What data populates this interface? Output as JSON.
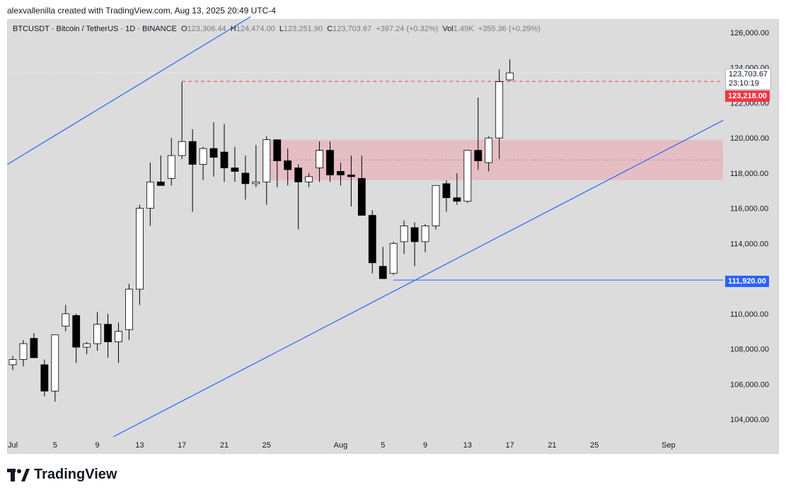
{
  "header": {
    "credit": "alexvallenilla created with TradingView.com, Aug 13, 2025 20:49 UTC-4"
  },
  "legend": {
    "symbol": "BTCUSDT · Bitcoin / TetherUS · 1D · BINANCE",
    "o_label": "O",
    "o": "123,306.44",
    "h_label": "H",
    "h": "124,474.00",
    "l_label": "L",
    "l": "123,251.90",
    "c_label": "C",
    "c": "123,703.67",
    "change": "+397.24 (+0.32%)",
    "vol_label": "Vol",
    "vol": "1.49K",
    "vol_change": "+355.36 (+0.29%)"
  },
  "price_tags": {
    "last": "123,703.67",
    "countdown": "23:10:19",
    "red_level": "123,218.00",
    "blue_level": "111,920.00"
  },
  "brand": {
    "name": "TradingView",
    "logo_icon": "tradingview-logo-icon"
  },
  "colors": {
    "up": "#ffffff",
    "down": "#000000",
    "zone": "#e8b4bc",
    "red": "#f23645",
    "blue": "#2962ff"
  },
  "chart_data": {
    "type": "candlestick",
    "title": "",
    "y_axis": {
      "ticks": [
        104000,
        106000,
        108000,
        110000,
        112000,
        114000,
        116000,
        118000,
        120000,
        122000,
        124000,
        126000
      ],
      "tick_labels": [
        "104,000.00",
        "106,000.00",
        "108,000.00",
        "110,000.00",
        "",
        "114,000.00",
        "116,000.00",
        "118,000.00",
        "120,000.00",
        "122,000.00",
        "124,000.00",
        "126,000.00"
      ],
      "range": [
        102800,
        126900
      ]
    },
    "x_axis": {
      "labels": [
        "Jul",
        "5",
        "9",
        "13",
        "17",
        "21",
        "25",
        "Aug",
        "5",
        "9",
        "13",
        "17",
        "21",
        "25",
        "Sep"
      ],
      "label_days": [
        0,
        4,
        8,
        12,
        16,
        20,
        24,
        31,
        35,
        39,
        43,
        47,
        51,
        55,
        62
      ]
    },
    "candles": [
      {
        "date": "2025-06-30",
        "o": 107100,
        "h": 107600,
        "l": 106800,
        "c": 107400
      },
      {
        "date": "2025-07-01",
        "o": 107400,
        "h": 108500,
        "l": 107000,
        "c": 108300
      },
      {
        "date": "2025-07-02",
        "o": 108600,
        "h": 108900,
        "l": 107500,
        "c": 107500
      },
      {
        "date": "2025-07-03",
        "o": 107100,
        "h": 107400,
        "l": 105300,
        "c": 105600
      },
      {
        "date": "2025-07-04",
        "o": 105600,
        "h": 108800,
        "l": 105000,
        "c": 108800
      },
      {
        "date": "2025-07-05",
        "o": 109300,
        "h": 110500,
        "l": 109000,
        "c": 110000
      },
      {
        "date": "2025-07-06",
        "o": 109900,
        "h": 110000,
        "l": 107200,
        "c": 108100
      },
      {
        "date": "2025-07-07",
        "o": 108100,
        "h": 108400,
        "l": 107700,
        "c": 108300
      },
      {
        "date": "2025-07-08",
        "o": 108300,
        "h": 110100,
        "l": 107900,
        "c": 109400
      },
      {
        "date": "2025-07-09",
        "o": 109400,
        "h": 110000,
        "l": 107500,
        "c": 108400
      },
      {
        "date": "2025-07-10",
        "o": 108400,
        "h": 109500,
        "l": 107200,
        "c": 109000
      },
      {
        "date": "2025-07-11",
        "o": 109100,
        "h": 111700,
        "l": 108500,
        "c": 111400
      },
      {
        "date": "2025-07-12",
        "o": 111400,
        "h": 116200,
        "l": 110500,
        "c": 116000
      },
      {
        "date": "2025-07-13",
        "o": 116000,
        "h": 118600,
        "l": 115000,
        "c": 117500
      },
      {
        "date": "2025-07-14",
        "o": 117500,
        "h": 119000,
        "l": 117300,
        "c": 117300
      },
      {
        "date": "2025-07-15",
        "o": 117700,
        "h": 120000,
        "l": 117300,
        "c": 119000
      },
      {
        "date": "2025-07-16",
        "o": 119000,
        "h": 123200,
        "l": 118800,
        "c": 119800
      },
      {
        "date": "2025-07-17",
        "o": 119800,
        "h": 120500,
        "l": 115800,
        "c": 118500
      },
      {
        "date": "2025-07-18",
        "o": 118500,
        "h": 119500,
        "l": 117600,
        "c": 119400
      },
      {
        "date": "2025-07-19",
        "o": 119400,
        "h": 120900,
        "l": 117800,
        "c": 118900
      },
      {
        "date": "2025-07-20",
        "o": 119200,
        "h": 120800,
        "l": 117500,
        "c": 118300
      },
      {
        "date": "2025-07-21",
        "o": 118300,
        "h": 119500,
        "l": 117500,
        "c": 118100
      },
      {
        "date": "2025-07-22",
        "o": 118000,
        "h": 119000,
        "l": 116500,
        "c": 117400
      },
      {
        "date": "2025-07-23",
        "o": 117400,
        "h": 119600,
        "l": 117200,
        "c": 117500
      },
      {
        "date": "2025-07-24",
        "o": 117500,
        "h": 120100,
        "l": 116200,
        "c": 119900
      },
      {
        "date": "2025-07-25",
        "o": 119900,
        "h": 119900,
        "l": 117200,
        "c": 118700
      },
      {
        "date": "2025-07-26",
        "o": 118700,
        "h": 119400,
        "l": 117300,
        "c": 118200
      },
      {
        "date": "2025-07-27",
        "o": 118300,
        "h": 118500,
        "l": 114800,
        "c": 117500
      },
      {
        "date": "2025-07-28",
        "o": 117500,
        "h": 118000,
        "l": 117200,
        "c": 117800
      },
      {
        "date": "2025-07-29",
        "o": 118300,
        "h": 119800,
        "l": 117500,
        "c": 119300
      },
      {
        "date": "2025-07-30",
        "o": 119300,
        "h": 119800,
        "l": 117500,
        "c": 117900
      },
      {
        "date": "2025-07-31",
        "o": 118100,
        "h": 118600,
        "l": 117300,
        "c": 117900
      },
      {
        "date": "2025-08-01",
        "o": 117900,
        "h": 119000,
        "l": 116100,
        "c": 117800
      },
      {
        "date": "2025-08-02",
        "o": 117700,
        "h": 119000,
        "l": 115600,
        "c": 115600
      },
      {
        "date": "2025-08-03",
        "o": 115600,
        "h": 115900,
        "l": 112300,
        "c": 112900
      },
      {
        "date": "2025-08-04",
        "o": 112700,
        "h": 113800,
        "l": 112100,
        "c": 112000
      },
      {
        "date": "2025-08-05",
        "o": 112300,
        "h": 114100,
        "l": 112200,
        "c": 114000
      },
      {
        "date": "2025-08-06",
        "o": 114100,
        "h": 115300,
        "l": 113400,
        "c": 115000
      },
      {
        "date": "2025-08-07",
        "o": 114900,
        "h": 115200,
        "l": 112700,
        "c": 114100
      },
      {
        "date": "2025-08-08",
        "o": 114100,
        "h": 115100,
        "l": 113500,
        "c": 115000
      },
      {
        "date": "2025-08-09",
        "o": 115000,
        "h": 117100,
        "l": 114800,
        "c": 117300
      },
      {
        "date": "2025-08-10",
        "o": 117400,
        "h": 117600,
        "l": 115800,
        "c": 116600
      },
      {
        "date": "2025-08-11",
        "o": 116600,
        "h": 118000,
        "l": 116200,
        "c": 116400
      },
      {
        "date": "2025-08-12",
        "o": 116400,
        "h": 119300,
        "l": 116300,
        "c": 119300
      },
      {
        "date": "2025-08-13",
        "o": 119300,
        "h": 122300,
        "l": 118200,
        "c": 118700
      },
      {
        "date": "2025-08-14",
        "o": 118600,
        "h": 120100,
        "l": 118100,
        "c": 120000
      },
      {
        "date": "2025-08-15",
        "o": 120000,
        "h": 123900,
        "l": 118800,
        "c": 123200
      },
      {
        "date": "2025-08-16",
        "o": 123306.44,
        "h": 124474.0,
        "l": 123251.9,
        "c": 123703.67
      }
    ],
    "annotations": {
      "zone": {
        "from_day": 24,
        "to_day": "right_edge",
        "y_low": 117600,
        "y_high": 119900
      },
      "zone_midline": 118750,
      "red_dashed_level": {
        "value": 123218,
        "from_day": 16
      },
      "last_price_dotted": 123703.67,
      "blue_level": {
        "value": 111920,
        "from_day": 36
      },
      "channel_upper": {
        "points": [
          {
            "day": -0.5,
            "value": 118500
          },
          {
            "day": 22.5,
            "value": 126900
          }
        ]
      },
      "channel_lower": {
        "points": [
          {
            "day": 9.5,
            "value": 103000
          },
          {
            "day": "right_edge",
            "value": 121000
          }
        ]
      }
    }
  }
}
